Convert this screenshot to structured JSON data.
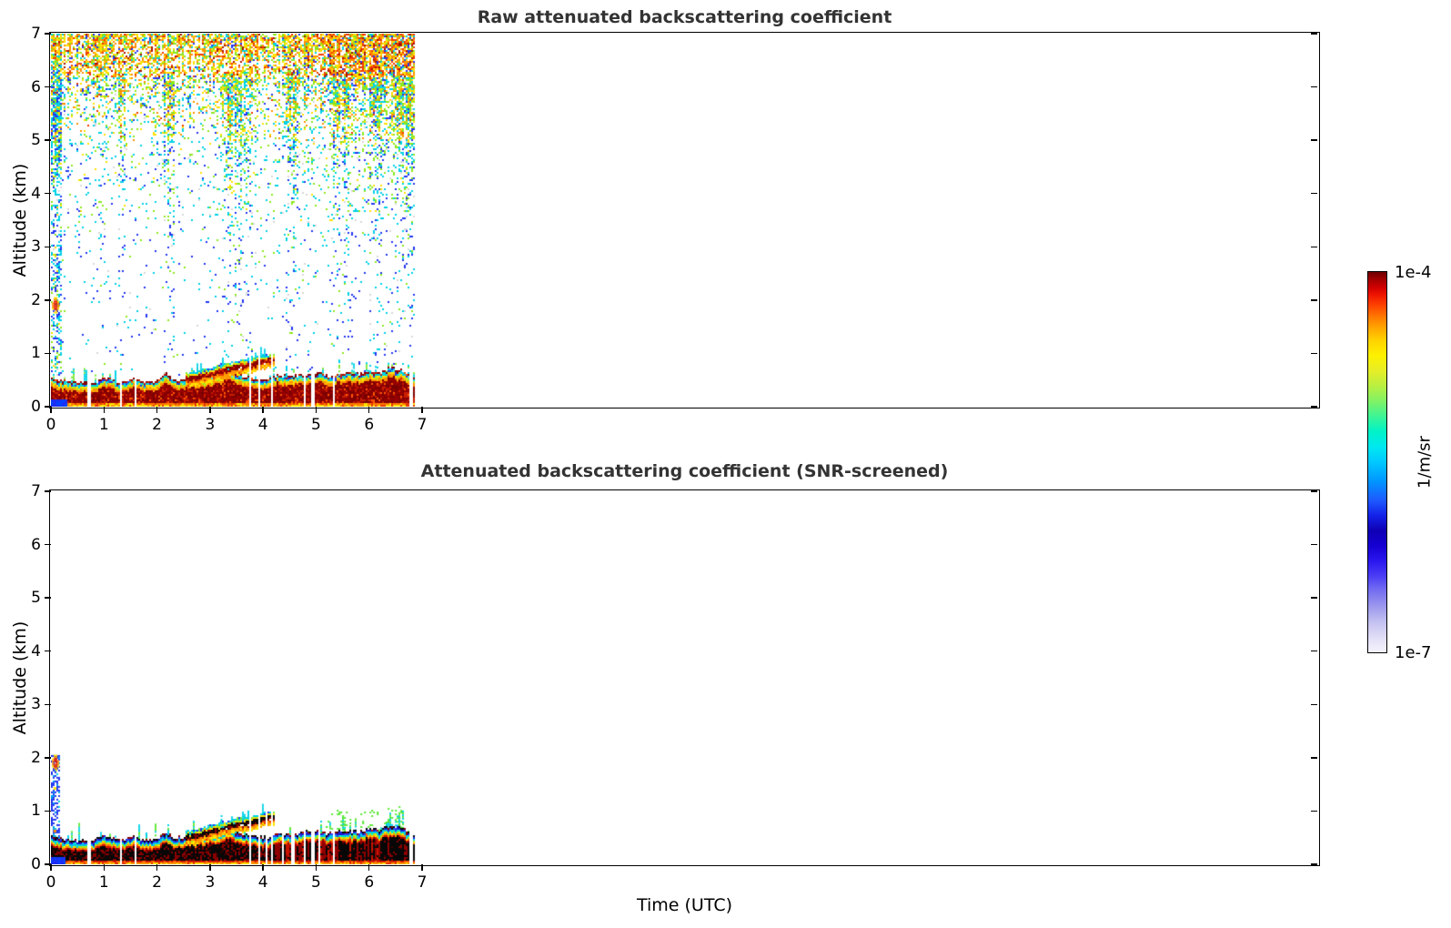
{
  "figure": {
    "top_title": "Raw attenuated backscattering coefficient",
    "bottom_title": "Attenuated backscattering coefficient (SNR-screened)",
    "x_axis_label": "Time (UTC)",
    "y_axis_label": "Altitude (km)",
    "background": "#ffffff",
    "title_color": "#333333"
  },
  "axes": {
    "x_tick_labels": [
      "0",
      "1",
      "2",
      "3",
      "4",
      "5",
      "6",
      "7"
    ],
    "y_tick_labels": [
      "0",
      "1",
      "2",
      "3",
      "4",
      "5",
      "6",
      "7"
    ],
    "x_tick_values_hours": [
      0,
      1,
      2,
      3,
      4,
      5,
      6,
      7
    ],
    "y_tick_values_km": [
      0,
      1,
      2,
      3,
      4,
      5,
      6,
      7
    ],
    "y_range_km": [
      0,
      7
    ],
    "x_axis_range_hours": [
      0,
      23.9
    ]
  },
  "colorbar": {
    "label": "1/m/sr",
    "max_label": "1e-4",
    "min_label": "1e-7",
    "scale": "log",
    "stops": [
      [
        0.0,
        "#f5f3fc"
      ],
      [
        0.025,
        "#e9e6f9"
      ],
      [
        0.05,
        "#d9d6f5"
      ],
      [
        0.08,
        "#c3c0f1"
      ],
      [
        0.11,
        "#a7a3ee"
      ],
      [
        0.14,
        "#8a85ee"
      ],
      [
        0.17,
        "#6e66f2"
      ],
      [
        0.2,
        "#4b3ef4"
      ],
      [
        0.24,
        "#2a17ef"
      ],
      [
        0.28,
        "#1500d2"
      ],
      [
        0.32,
        "#0f00b4"
      ],
      [
        0.36,
        "#1422e8"
      ],
      [
        0.4,
        "#1e5aff"
      ],
      [
        0.45,
        "#0096ff"
      ],
      [
        0.5,
        "#00c8ff"
      ],
      [
        0.54,
        "#00e8f0"
      ],
      [
        0.58,
        "#00f2c8"
      ],
      [
        0.62,
        "#3cf596"
      ],
      [
        0.66,
        "#80f266"
      ],
      [
        0.7,
        "#b8ef41"
      ],
      [
        0.74,
        "#e6ee28"
      ],
      [
        0.78,
        "#fdf100"
      ],
      [
        0.82,
        "#ffd300"
      ],
      [
        0.85,
        "#ffaa00"
      ],
      [
        0.88,
        "#ff7d00"
      ],
      [
        0.91,
        "#ff4600"
      ],
      [
        0.94,
        "#ef1400"
      ],
      [
        0.96,
        "#cf0000"
      ],
      [
        0.98,
        "#a40000"
      ],
      [
        1.0,
        "#6e0000"
      ]
    ]
  },
  "chart_data": [
    {
      "type": "heatmap",
      "title": "Raw attenuated backscattering coefficient",
      "xlabel": "Time (UTC)",
      "ylabel": "Altitude (km)",
      "units": "1/m/sr",
      "value_scale": "log",
      "value_min": "1e-7",
      "value_max": "1e-4",
      "x_extent_hours": [
        0,
        6.83
      ],
      "y_range_km": [
        0,
        7
      ],
      "band_top_profile_km": [
        [
          0,
          0.52
        ],
        [
          0.2,
          0.46
        ],
        [
          0.5,
          0.43
        ],
        [
          0.8,
          0.44
        ],
        [
          1.0,
          0.52
        ],
        [
          1.15,
          0.48
        ],
        [
          1.35,
          0.44
        ],
        [
          1.55,
          0.52
        ],
        [
          1.75,
          0.44
        ],
        [
          2.0,
          0.46
        ],
        [
          2.15,
          0.6
        ],
        [
          2.3,
          0.48
        ],
        [
          2.5,
          0.5
        ],
        [
          2.8,
          0.52
        ],
        [
          3.0,
          0.55
        ],
        [
          3.2,
          0.6
        ],
        [
          3.35,
          0.66
        ],
        [
          3.5,
          0.58
        ],
        [
          3.7,
          0.54
        ],
        [
          3.9,
          0.5
        ],
        [
          4.1,
          0.48
        ],
        [
          4.25,
          0.58
        ],
        [
          4.5,
          0.55
        ],
        [
          4.75,
          0.58
        ],
        [
          5.0,
          0.62
        ],
        [
          5.25,
          0.56
        ],
        [
          5.5,
          0.62
        ],
        [
          5.75,
          0.6
        ],
        [
          6.0,
          0.66
        ],
        [
          6.2,
          0.62
        ],
        [
          6.4,
          0.72
        ],
        [
          6.6,
          0.66
        ],
        [
          6.83,
          0.56
        ]
      ],
      "plume_profile_km": [
        [
          2.55,
          0.5
        ],
        [
          2.8,
          0.55
        ],
        [
          3.0,
          0.6
        ],
        [
          3.2,
          0.66
        ],
        [
          3.4,
          0.71
        ],
        [
          3.6,
          0.75
        ],
        [
          3.8,
          0.79
        ],
        [
          4.0,
          0.84
        ],
        [
          4.22,
          0.88
        ]
      ],
      "gap_times_hours": [
        0.7,
        1.3,
        1.58,
        3.74,
        3.91,
        4.15,
        4.77,
        4.92,
        5.33,
        6.78
      ],
      "elevated_spot": {
        "t": 0.07,
        "alt_km": 1.92
      },
      "noise": {
        "density_by_alt": [
          [
            0.55,
            0.012
          ],
          [
            2,
            0.018
          ],
          [
            3,
            0.028
          ],
          [
            4,
            0.05
          ],
          [
            4.6,
            0.08
          ],
          [
            5.2,
            0.13
          ],
          [
            5.8,
            0.22
          ],
          [
            6.3,
            0.38
          ],
          [
            6.7,
            0.55
          ],
          [
            7,
            0.72
          ]
        ],
        "right_boost": {
          "start_t": 4.3,
          "rate": 0.45
        },
        "streaks": [
          [
            0.0,
            0.2,
            5
          ],
          [
            1.25,
            1.4,
            2.5
          ],
          [
            2.1,
            2.3,
            3
          ],
          [
            3.2,
            3.6,
            3.5
          ],
          [
            3.6,
            3.8,
            2
          ],
          [
            4.4,
            4.65,
            2.5
          ],
          [
            5.3,
            5.6,
            2.2
          ],
          [
            6.0,
            6.3,
            1.8
          ],
          [
            6.45,
            6.83,
            1.8
          ]
        ],
        "streak_max_alt": 6.3,
        "zones": [
          {
            "min_alt": 6.2,
            "right_t": 5.0,
            "palette": [
              [
                "#ffe000",
                0.3
              ],
              [
                "#ff9100",
                0.22
              ],
              [
                "#8ce81e",
                0.16
              ],
              [
                "#f03a00",
                0.12
              ],
              [
                "#00d2e6",
                0.1
              ],
              [
                "#2337f0",
                0.05
              ],
              [
                "#a81400",
                0.05
              ]
            ],
            "palette_right": [
              [
                "#ff9100",
                0.26
              ],
              [
                "#f03a00",
                0.2
              ],
              [
                "#ffe000",
                0.22
              ],
              [
                "#a81400",
                0.09
              ],
              [
                "#8ce81e",
                0.1
              ],
              [
                "#00d2e6",
                0.07
              ],
              [
                "#2337f0",
                0.06
              ]
            ]
          },
          {
            "min_alt": 5.0,
            "palette": [
              [
                "#ffe000",
                0.2
              ],
              [
                "#8ce81e",
                0.28
              ],
              [
                "#00d2e6",
                0.26
              ],
              [
                "#2337f0",
                0.1
              ],
              [
                "#ff9100",
                0.09
              ],
              [
                "#f03a00",
                0.03
              ],
              [
                "#d8d8d8",
                0.04
              ]
            ]
          },
          {
            "min_alt": 3.5,
            "palette": [
              [
                "#00d2e6",
                0.4
              ],
              [
                "#8ce81e",
                0.25
              ],
              [
                "#2337f0",
                0.2
              ],
              [
                "#ffe000",
                0.08
              ],
              [
                "#d8d8d8",
                0.07
              ]
            ]
          },
          {
            "min_alt": 0,
            "palette": [
              [
                "#00d2e6",
                0.42
              ],
              [
                "#2337f0",
                0.36
              ],
              [
                "#8ce81e",
                0.15
              ],
              [
                "#d8d8d8",
                0.07
              ]
            ]
          }
        ],
        "left_column": {
          "until_t": 0.2,
          "p_low": 0.3,
          "p_high": 0.12,
          "split_alt": 3.0,
          "palette": [
            [
              "#00d2e6",
              0.45
            ],
            [
              "#2337f0",
              0.3
            ],
            [
              "#8ce81e",
              0.15
            ],
            [
              "#ffe000",
              0.1
            ]
          ]
        }
      },
      "band_style": {
        "fringe_below_top": [
          [
            0,
            0.05,
            [
              [
                "#00d2e8",
                0.6
              ],
              [
                "#2337f0",
                0.25
              ],
              [
                "#58e6c8",
                0.15
              ]
            ]
          ],
          [
            0.05,
            0.09,
            [
              [
                "#b4ec14",
                0.5
              ],
              [
                "#ffe400",
                0.5
              ]
            ]
          ],
          [
            0.09,
            0.14,
            [
              [
                "#ff9100",
                0.7
              ],
              [
                "#ffb400",
                0.3
              ]
            ]
          ]
        ],
        "core": {
          "bottom_alt": 0.1,
          "palette": [
            [
              "#960000",
              0.45
            ],
            [
              "#7a0000",
              0.3
            ],
            [
              "#c81e00",
              0.18
            ],
            [
              "#ff5a00",
              0.07
            ]
          ]
        },
        "ground": [
          [
            0.1,
            0.05,
            [
              [
                "#ff7a00",
                0.55
              ],
              [
                "#e83c00",
                0.25
              ],
              [
                "#ffe400",
                0.2
              ]
            ]
          ],
          [
            0.05,
            0.0,
            [
              [
                "#ffe400",
                0.5
              ],
              [
                "#ff9c00",
                0.3
              ],
              [
                "#e83c00",
                0.2
              ]
            ]
          ]
        ],
        "left_blue": {
          "until_t": 0.28,
          "below_alt": 0.17,
          "palette": [
            [
              "#1d2df2",
              0.7
            ],
            [
              "#0044ff",
              0.3
            ]
          ]
        },
        "spikes": {
          "base_p": 0.12,
          "right_t": 5.3,
          "right_p": 0.3,
          "max_km": 0.25,
          "palette": [
            [
              "#00d2e8",
              0.7
            ],
            [
              "#7ee838",
              0.3
            ]
          ]
        }
      }
    },
    {
      "type": "heatmap",
      "title": "Attenuated backscattering coefficient (SNR-screened)",
      "xlabel": "Time (UTC)",
      "ylabel": "Altitude (km)",
      "units": "1/m/sr",
      "value_scale": "log",
      "value_min": "1e-7",
      "value_max": "1e-4",
      "x_extent_hours": [
        0,
        6.83
      ],
      "y_range_km": [
        0,
        7
      ],
      "band_top_profile_km": [
        [
          0,
          0.52
        ],
        [
          0.2,
          0.46
        ],
        [
          0.5,
          0.43
        ],
        [
          0.8,
          0.44
        ],
        [
          1.0,
          0.52
        ],
        [
          1.15,
          0.48
        ],
        [
          1.35,
          0.44
        ],
        [
          1.55,
          0.52
        ],
        [
          1.75,
          0.44
        ],
        [
          2.0,
          0.46
        ],
        [
          2.15,
          0.6
        ],
        [
          2.3,
          0.48
        ],
        [
          2.5,
          0.5
        ],
        [
          2.8,
          0.52
        ],
        [
          3.0,
          0.55
        ],
        [
          3.2,
          0.6
        ],
        [
          3.35,
          0.66
        ],
        [
          3.5,
          0.58
        ],
        [
          3.7,
          0.54
        ],
        [
          3.9,
          0.5
        ],
        [
          4.1,
          0.48
        ],
        [
          4.25,
          0.58
        ],
        [
          4.5,
          0.55
        ],
        [
          4.75,
          0.58
        ],
        [
          5.0,
          0.62
        ],
        [
          5.25,
          0.56
        ],
        [
          5.5,
          0.62
        ],
        [
          5.75,
          0.6
        ],
        [
          6.0,
          0.66
        ],
        [
          6.2,
          0.62
        ],
        [
          6.4,
          0.72
        ],
        [
          6.6,
          0.66
        ],
        [
          6.83,
          0.56
        ]
      ],
      "plume_profile_km": [
        [
          2.55,
          0.5
        ],
        [
          2.8,
          0.55
        ],
        [
          3.0,
          0.6
        ],
        [
          3.2,
          0.66
        ],
        [
          3.4,
          0.71
        ],
        [
          3.6,
          0.75
        ],
        [
          3.8,
          0.79
        ],
        [
          4.0,
          0.84
        ],
        [
          4.22,
          0.88
        ]
      ],
      "gap_times_hours": [
        0.7,
        1.3,
        1.58,
        3.74,
        3.91,
        4.05,
        4.15,
        4.35,
        4.55,
        4.77,
        4.92,
        5.05,
        5.33,
        6.78
      ],
      "elevated_spot": {
        "t": 0.07,
        "alt_km": 1.92
      },
      "left_column_bottom": {
        "until_t": 0.14,
        "max_alt": 2.05,
        "p": 0.5,
        "palette": [
          [
            "#2337f0",
            0.7
          ],
          [
            "#00a0f0",
            0.2
          ],
          [
            "#00d2e6",
            0.1
          ]
        ],
        "dots": [
          {
            "t": 0.05,
            "alt": 1.45,
            "color": "#ffe400"
          },
          {
            "t": 0.05,
            "alt": 0.65,
            "color": "#ff9100"
          }
        ]
      },
      "band_style": {
        "fringe_below_top": [
          [
            0,
            0.035,
            [
              [
                "#1b1bd2",
                0.7
              ],
              [
                "#2a3cf5",
                0.3
              ]
            ]
          ],
          [
            0.035,
            0.075,
            [
              [
                "#00c8ea",
                0.7
              ],
              [
                "#00e6d2",
                0.3
              ]
            ]
          ],
          [
            0.075,
            0.105,
            [
              [
                "#aaee10",
                0.5
              ],
              [
                "#ffe400",
                0.5
              ]
            ]
          ],
          [
            0.105,
            0.135,
            [
              [
                "#ff9100",
                0.6
              ],
              [
                "#ff6400",
                0.4
              ]
            ]
          ],
          [
            0.135,
            0.165,
            [
              [
                "#d81000",
                0.6
              ],
              [
                "#a00000",
                0.4
              ]
            ]
          ]
        ],
        "core": {
          "bottom_alt": 0.08,
          "palette": [
            [
              "#070707",
              0.62
            ],
            [
              "#8b0000",
              0.26
            ],
            [
              "#3c0000",
              0.12
            ]
          ]
        },
        "stripe_after_t": 4.2,
        "stripe_palette": [
          [
            "#070707",
            0.5
          ],
          [
            "#900000",
            0.35
          ],
          [
            "#c81400",
            0.15
          ]
        ],
        "ground": [
          [
            0.08,
            0.04,
            [
              [
                "#d81c00",
                0.6
              ],
              [
                "#ff6400",
                0.4
              ]
            ]
          ],
          [
            0.04,
            0.0,
            [
              [
                "#ff9c00",
                0.45
              ],
              [
                "#ffe400",
                0.35
              ],
              [
                "#e83c00",
                0.2
              ]
            ]
          ]
        ],
        "left_blue": {
          "until_t": 0.26,
          "below_alt": 0.17,
          "palette": [
            [
              "#1d2df2",
              0.7
            ],
            [
              "#0044ff",
              0.3
            ]
          ]
        },
        "spikes": {
          "base_p": 0.1,
          "right_t": 5.2,
          "right_p": 0.3,
          "max_km": 0.3,
          "palette": [
            [
              "#00d2e8",
              0.5
            ],
            [
              "#57e832",
              0.5
            ]
          ]
        },
        "speckle_regions": [
          {
            "t0": 5.15,
            "t1": 6.6,
            "p": 0.5,
            "color": "#57e832",
            "max_above_km": 0.35
          },
          {
            "t0": 3.2,
            "t1": 3.5,
            "p": 0.35,
            "color": "#00d2e8",
            "max_above_km": 0.3
          }
        ]
      }
    }
  ]
}
